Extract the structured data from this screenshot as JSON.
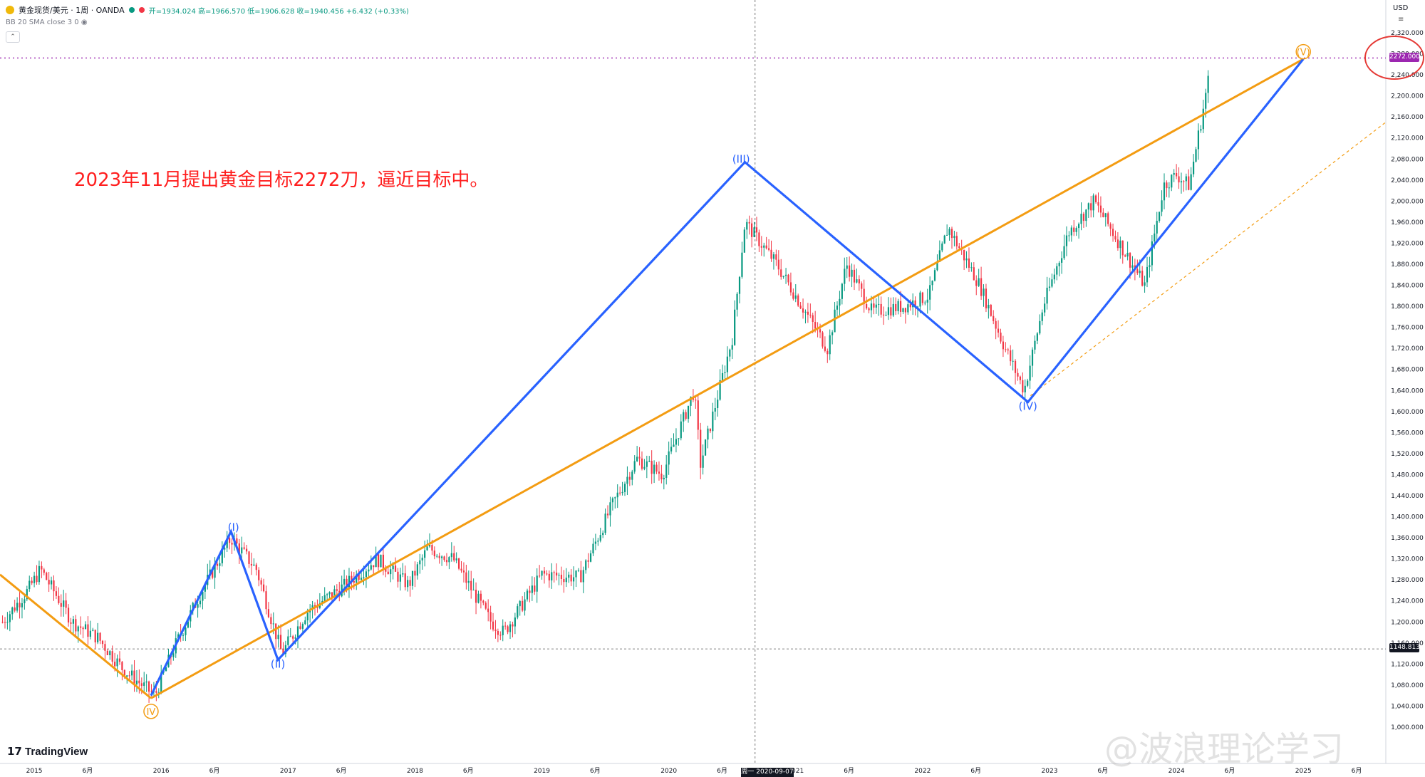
{
  "header": {
    "symbol": "黄金现货/美元 · 1周 · OANDA",
    "ohlc": "开=1934.024  高=1966.570  低=1906.628  收=1940.456  +6.432 (+0.33%)",
    "indicator": "BB 20 SMA close 3 0",
    "currency": "USD"
  },
  "annotation_text": "2023年11月提出黄金目标2272刀，逼近目标中。",
  "brand": "TradingView",
  "watermark": "@波浪理论学习",
  "crosshair_date": "周一  2020-09-07",
  "target_price": "2272.000",
  "current_price": "1148.813",
  "colors": {
    "up": "#089981",
    "down": "#f23645",
    "wave": "#2962ff",
    "trend": "#f39c12",
    "target": "#9c27b0",
    "annotation": "#ff1e1e"
  },
  "chart_data": {
    "type": "candlestick",
    "y_ticks": [
      1000,
      1040,
      1080,
      1120,
      1160,
      1200,
      1240,
      1280,
      1320,
      1360,
      1400,
      1440,
      1480,
      1520,
      1560,
      1600,
      1640,
      1680,
      1720,
      1760,
      1800,
      1840,
      1880,
      1920,
      1960,
      2000,
      2040,
      2080,
      2120,
      2160,
      2200,
      2240,
      2280,
      2320
    ],
    "ylim": [
      980,
      2340
    ],
    "x_ticks": [
      "2015",
      "6月",
      "2016",
      "6月",
      "2017",
      "6月",
      "2018",
      "6月",
      "2019",
      "6月",
      "2020",
      "6月",
      "2021",
      "6月",
      "2022",
      "6月",
      "2023",
      "6月",
      "2024",
      "6月",
      "2025",
      "6月"
    ],
    "x_tick_years": [
      2015,
      2015.42,
      2016,
      2016.42,
      2017,
      2017.42,
      2018,
      2018.42,
      2019,
      2019.42,
      2020,
      2020.42,
      2021,
      2021.42,
      2022,
      2022.42,
      2023,
      2023.42,
      2024,
      2024.42,
      2025,
      2025.42
    ],
    "xlim": [
      2014.73,
      2025.65
    ],
    "price_path": [
      [
        2014.75,
        1200
      ],
      [
        2014.95,
        1260
      ],
      [
        2015.05,
        1300
      ],
      [
        2015.3,
        1200
      ],
      [
        2015.5,
        1170
      ],
      [
        2015.7,
        1110
      ],
      [
        2015.95,
        1060
      ],
      [
        2016.1,
        1150
      ],
      [
        2016.3,
        1250
      ],
      [
        2016.55,
        1360
      ],
      [
        2016.75,
        1300
      ],
      [
        2016.95,
        1140
      ],
      [
        2017.15,
        1220
      ],
      [
        2017.45,
        1270
      ],
      [
        2017.7,
        1320
      ],
      [
        2017.95,
        1270
      ],
      [
        2018.1,
        1340
      ],
      [
        2018.3,
        1320
      ],
      [
        2018.6,
        1200
      ],
      [
        2018.7,
        1180
      ],
      [
        2019.0,
        1290
      ],
      [
        2019.3,
        1285
      ],
      [
        2019.55,
        1420
      ],
      [
        2019.75,
        1510
      ],
      [
        2019.95,
        1480
      ],
      [
        2020.2,
        1640
      ],
      [
        2020.25,
        1500
      ],
      [
        2020.5,
        1740
      ],
      [
        2020.6,
        1960
      ],
      [
        2020.85,
        1880
      ],
      [
        2021.1,
        1780
      ],
      [
        2021.25,
        1720
      ],
      [
        2021.4,
        1880
      ],
      [
        2021.6,
        1790
      ],
      [
        2021.85,
        1800
      ],
      [
        2022.05,
        1820
      ],
      [
        2022.2,
        1950
      ],
      [
        2022.45,
        1840
      ],
      [
        2022.65,
        1720
      ],
      [
        2022.8,
        1640
      ],
      [
        2022.95,
        1800
      ],
      [
        2023.15,
        1940
      ],
      [
        2023.35,
        2000
      ],
      [
        2023.55,
        1920
      ],
      [
        2023.75,
        1840
      ],
      [
        2023.9,
        2030
      ],
      [
        2024.0,
        2050
      ],
      [
        2024.1,
        2030
      ],
      [
        2024.2,
        2160
      ],
      [
        2024.25,
        2230
      ]
    ],
    "wave_labels": [
      {
        "text": "IV",
        "x": 2015.92,
        "y": 1030,
        "style": "circle-orange"
      },
      {
        "text": "(I)",
        "x": 2016.57,
        "y": 1380,
        "style": "blue"
      },
      {
        "text": "(II)",
        "x": 2016.92,
        "y": 1120,
        "style": "blue"
      },
      {
        "text": "(III)",
        "x": 2020.57,
        "y": 2080,
        "style": "blue"
      },
      {
        "text": "(IV)",
        "x": 2022.83,
        "y": 1610,
        "style": "blue"
      },
      {
        "text": "(V)",
        "x": 2025.0,
        "y": 2284,
        "style": "circle-orange"
      }
    ],
    "blue_wave": [
      [
        2015.92,
        1060
      ],
      [
        2016.55,
        1372
      ],
      [
        2016.92,
        1128
      ],
      [
        2020.6,
        2074
      ],
      [
        2022.83,
        1618
      ],
      [
        2025.0,
        2270
      ]
    ],
    "orange_lines": [
      [
        [
          2014.73,
          1290
        ],
        [
          2015.92,
          1055
        ]
      ],
      [
        [
          2015.92,
          1055
        ],
        [
          2025.0,
          2270
        ]
      ]
    ],
    "orange_dashed": [
      [
        2022.85,
        1630
      ],
      [
        2025.65,
        2150
      ]
    ],
    "target_line": 2272,
    "horizontal_dashed": 1148.8,
    "crosshair_x": 2020.68
  }
}
